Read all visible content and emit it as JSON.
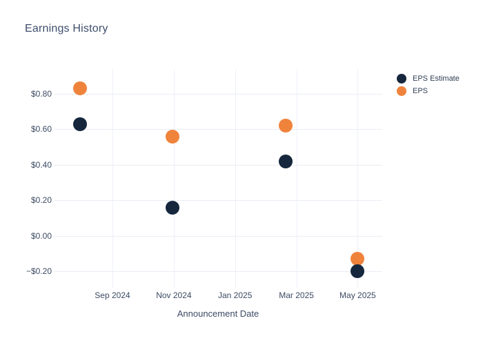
{
  "header": {
    "title": "Earnings History",
    "title_color": "#3d4d6b"
  },
  "x_axis": {
    "title": "Announcement Date",
    "tick_labels": [
      "Sep 2024",
      "Nov 2024",
      "Jan 2025",
      "Mar 2025",
      "May 2025"
    ]
  },
  "y_axis": {
    "tick_labels": [
      "$0.80",
      "$0.60",
      "$0.40",
      "$0.20",
      "$0.00",
      "−$0.20"
    ],
    "tick_values": [
      0.8,
      0.6,
      0.4,
      0.2,
      0.0,
      -0.2
    ]
  },
  "colors": {
    "eps_estimate": "#15263d",
    "eps": "#f0833c",
    "gridline": "#e9edf4",
    "text": "#3b4a62",
    "background": "#ffffff"
  },
  "chart_data": {
    "type": "scatter",
    "title": "Earnings History",
    "xlabel": "Announcement Date",
    "ylabel": "",
    "x_tick_labels": [
      "Sep 2024",
      "Nov 2024",
      "Jan 2025",
      "Mar 2025",
      "May 2025"
    ],
    "x_tick_month_index": [
      0,
      2,
      4,
      6,
      8
    ],
    "y_ticks": [
      0.8,
      0.6,
      0.4,
      0.2,
      0.0,
      -0.2
    ],
    "ylim": [
      -0.29,
      0.94
    ],
    "grid": true,
    "legend_position": "outside-top-right",
    "marker_radius_px": 10,
    "series": [
      {
        "name": "EPS Estimate",
        "color": "#15263d",
        "points": [
          {
            "approx_date": "Aug 2024",
            "x_month_index": -1.06,
            "value": 0.63
          },
          {
            "approx_date": "Nov 2024",
            "x_month_index": 1.96,
            "value": 0.16
          },
          {
            "approx_date": "Feb 2025",
            "x_month_index": 5.65,
            "value": 0.42
          },
          {
            "approx_date": "May 2025",
            "x_month_index": 8.0,
            "value": -0.2
          }
        ]
      },
      {
        "name": "EPS",
        "color": "#f0833c",
        "points": [
          {
            "approx_date": "Aug 2024",
            "x_month_index": -1.06,
            "value": 0.83
          },
          {
            "approx_date": "Nov 2024",
            "x_month_index": 1.96,
            "value": 0.56
          },
          {
            "approx_date": "Feb 2025",
            "x_month_index": 5.65,
            "value": 0.62
          },
          {
            "approx_date": "May 2025",
            "x_month_index": 8.0,
            "value": -0.13
          }
        ]
      }
    ]
  }
}
